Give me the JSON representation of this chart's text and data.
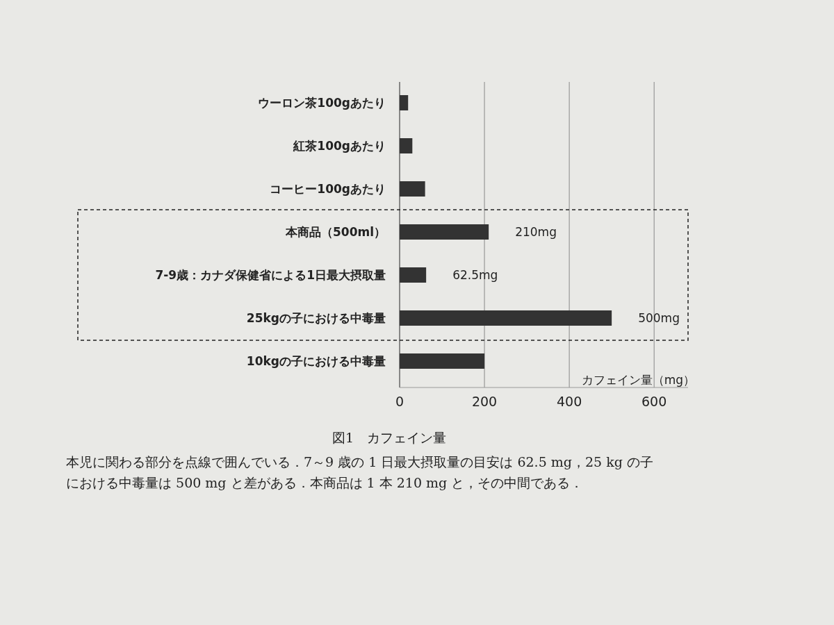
{
  "chart_data": {
    "type": "bar",
    "orientation": "horizontal",
    "title": "図1　カフェイン量",
    "xlabel": "カフェイン量（mg）",
    "categories": [
      "ウーロン茶100gあたり",
      "紅茶100gあたり",
      "コーヒー100gあたり",
      "本商品（500ml）",
      "7-9歳：カナダ保健省による1日最大摂取量",
      "25kgの子における中毒量",
      "10kgの子における中毒量"
    ],
    "values": [
      20,
      30,
      60,
      210,
      62.5,
      500,
      200
    ],
    "value_labels": [
      null,
      null,
      null,
      "210mg",
      "62.5mg",
      "500mg",
      null
    ],
    "color": "#333333",
    "xlim": [
      0,
      680
    ],
    "xticks": [
      0,
      200,
      400,
      600
    ],
    "grid": "x",
    "annotations": [
      "本児に関わる部分を点線で囲んでいる．7～9 歳の 1 日最大摂取量の目安は 62.5 mg，25 kg の子における中毒量は 500 mg と差がある．本商品は 1 本 210 mg と，その中間である．"
    ]
  }
}
